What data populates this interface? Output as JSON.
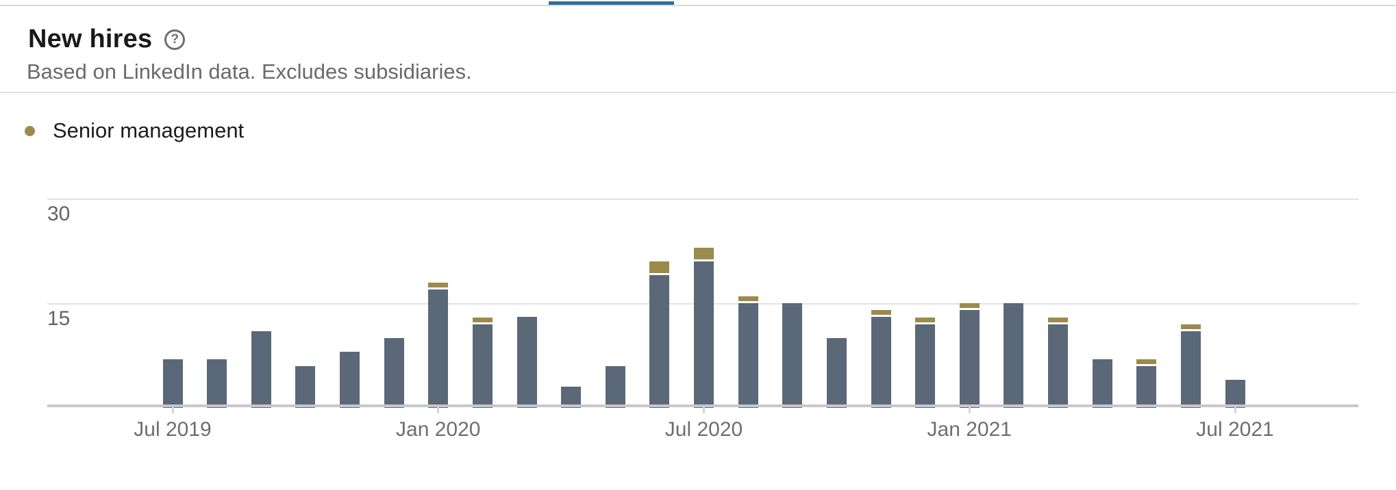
{
  "page": {
    "title": "New hires",
    "subtitle": "Based on LinkedIn data. Excludes subsidiaries.",
    "help_glyph": "?"
  },
  "legend": {
    "items": [
      {
        "label": "Senior management",
        "color": "#9c8a4c"
      }
    ]
  },
  "tabs": {
    "active_tab_indicator_color": "#2e6d9e"
  },
  "chart_data": {
    "type": "bar",
    "stacked": true,
    "title": "New hires",
    "xlabel": "",
    "ylabel": "",
    "x": [
      "Jul 2019",
      "Aug 2019",
      "Sep 2019",
      "Oct 2019",
      "Nov 2019",
      "Dec 2019",
      "Jan 2020",
      "Feb 2020",
      "Mar 2020",
      "Apr 2020",
      "May 2020",
      "Jun 2020",
      "Jul 2020",
      "Aug 2020",
      "Sep 2020",
      "Oct 2020",
      "Nov 2020",
      "Dec 2020",
      "Jan 2021",
      "Feb 2021",
      "Mar 2021",
      "Apr 2021",
      "May 2021",
      "Jun 2021",
      "Jul 2021"
    ],
    "series": [
      {
        "name": "New hires",
        "color": "#5a6878",
        "values": [
          7,
          7,
          11,
          6,
          8,
          10,
          17,
          12,
          13,
          3,
          6,
          19,
          21,
          15,
          15,
          10,
          13,
          12,
          14,
          15,
          12,
          7,
          6,
          11,
          4
        ]
      },
      {
        "name": "Senior management",
        "color": "#9c8a4c",
        "values": [
          0,
          0,
          0,
          0,
          0,
          0,
          1,
          1,
          0,
          0,
          0,
          2,
          2,
          1,
          0,
          0,
          1,
          1,
          1,
          0,
          1,
          0,
          1,
          1,
          0
        ]
      }
    ],
    "totals": [
      7,
      7,
      11,
      6,
      8,
      10,
      18,
      13,
      13,
      3,
      6,
      21,
      23,
      16,
      15,
      10,
      14,
      13,
      15,
      15,
      13,
      7,
      7,
      12,
      4
    ],
    "x_tick_labels": [
      "Jul 2019",
      "Jan 2020",
      "Jul 2020",
      "Jan 2021",
      "Jul 2021"
    ],
    "y_tick_labels": [
      "30",
      "15"
    ],
    "y_ticks": [
      30,
      15
    ],
    "ylim": [
      0,
      30
    ],
    "grid": "horizontal",
    "legend_position": "top-left"
  }
}
